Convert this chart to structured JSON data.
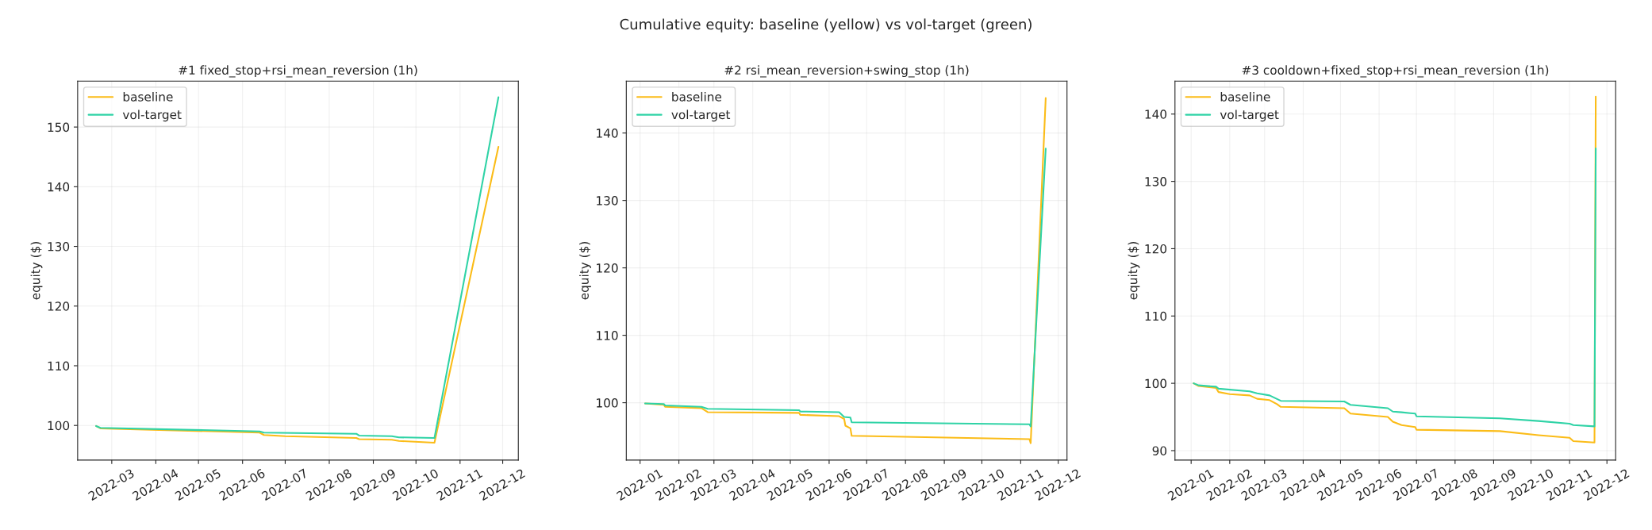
{
  "chart_data": [
    {
      "type": "line",
      "title": "#1 fixed_stop+rsi_mean_reversion (1h)",
      "ylabel": "equity ($)",
      "annotations": [
        "Cumulative equity: baseline (yellow) vs vol-target (green)"
      ],
      "grid": true,
      "legend": "top left",
      "xlim": [
        "2022-02-05",
        "2022-12-12"
      ],
      "ylim": [
        94.2,
        157.7
      ],
      "yticks": [
        100,
        110,
        120,
        130,
        140,
        150
      ],
      "xticks": [
        {
          "value": "2022-03-01",
          "label": "2022-03"
        },
        {
          "value": "2022-04-01",
          "label": "2022-04"
        },
        {
          "value": "2022-05-01",
          "label": "2022-05"
        },
        {
          "value": "2022-06-01",
          "label": "2022-06"
        },
        {
          "value": "2022-07-01",
          "label": "2022-07"
        },
        {
          "value": "2022-08-01",
          "label": "2022-08"
        },
        {
          "value": "2022-09-01",
          "label": "2022-09"
        },
        {
          "value": "2022-10-01",
          "label": "2022-10"
        },
        {
          "value": "2022-11-01",
          "label": "2022-11"
        },
        {
          "value": "2022-12-01",
          "label": "2022-12"
        }
      ],
      "series": [
        {
          "name": "baseline",
          "color": "#fbbc18",
          "x": [
            "2022-02-18",
            "2022-02-21",
            "2022-06-13",
            "2022-06-16",
            "2022-07-01",
            "2022-08-20",
            "2022-08-22",
            "2022-09-14",
            "2022-09-19",
            "2022-10-14",
            "2022-11-28"
          ],
          "values": [
            99.9,
            99.5,
            98.8,
            98.4,
            98.2,
            97.9,
            97.7,
            97.6,
            97.4,
            97.1,
            146.7
          ]
        },
        {
          "name": "vol-target",
          "color": "#2fd3a6",
          "x": [
            "2022-02-18",
            "2022-02-21",
            "2022-06-13",
            "2022-06-16",
            "2022-08-20",
            "2022-08-22",
            "2022-09-14",
            "2022-09-19",
            "2022-10-14",
            "2022-11-28"
          ],
          "values": [
            99.9,
            99.6,
            99.0,
            98.8,
            98.6,
            98.3,
            98.2,
            98.0,
            97.9,
            155.0
          ]
        }
      ]
    },
    {
      "type": "line",
      "title": "#2 rsi_mean_reversion+swing_stop (1h)",
      "ylabel": "equity ($)",
      "grid": true,
      "legend": "top left",
      "xlim": [
        "2021-12-21",
        "2022-12-08"
      ],
      "ylim": [
        91.5,
        147.7
      ],
      "yticks": [
        100,
        110,
        120,
        130,
        140
      ],
      "xticks": [
        {
          "value": "2022-01-01",
          "label": "2022-01"
        },
        {
          "value": "2022-02-01",
          "label": "2022-02"
        },
        {
          "value": "2022-03-01",
          "label": "2022-03"
        },
        {
          "value": "2022-04-01",
          "label": "2022-04"
        },
        {
          "value": "2022-05-01",
          "label": "2022-05"
        },
        {
          "value": "2022-06-01",
          "label": "2022-06"
        },
        {
          "value": "2022-07-01",
          "label": "2022-07"
        },
        {
          "value": "2022-08-01",
          "label": "2022-08"
        },
        {
          "value": "2022-09-01",
          "label": "2022-09"
        },
        {
          "value": "2022-10-01",
          "label": "2022-10"
        },
        {
          "value": "2022-11-01",
          "label": "2022-11"
        },
        {
          "value": "2022-12-01",
          "label": "2022-12"
        }
      ],
      "series": [
        {
          "name": "baseline",
          "color": "#fbbc18",
          "x": [
            "2022-01-05",
            "2022-01-20",
            "2022-01-21",
            "2022-02-19",
            "2022-02-24",
            "2022-05-08",
            "2022-05-09",
            "2022-06-09",
            "2022-06-13",
            "2022-06-14",
            "2022-06-18",
            "2022-06-19",
            "2022-11-08",
            "2022-11-09",
            "2022-11-21"
          ],
          "values": [
            99.9,
            99.7,
            99.4,
            99.2,
            98.6,
            98.5,
            98.2,
            98.0,
            97.6,
            96.6,
            96.2,
            95.1,
            94.6,
            94.0,
            145.2
          ]
        },
        {
          "name": "vol-target",
          "color": "#2fd3a6",
          "x": [
            "2022-01-05",
            "2022-01-20",
            "2022-01-21",
            "2022-02-19",
            "2022-02-24",
            "2022-05-08",
            "2022-05-09",
            "2022-06-09",
            "2022-06-13",
            "2022-06-18",
            "2022-06-19",
            "2022-11-08",
            "2022-11-09",
            "2022-11-21"
          ],
          "values": [
            99.9,
            99.8,
            99.6,
            99.4,
            99.1,
            98.9,
            98.7,
            98.6,
            97.9,
            97.8,
            97.1,
            96.8,
            96.5,
            137.7
          ]
        }
      ]
    },
    {
      "type": "line",
      "title": "#3 cooldown+fixed_stop+rsi_mean_reversion (1h)",
      "ylabel": "equity ($)",
      "grid": true,
      "legend": "top left",
      "xlim": [
        "2021-12-19",
        "2022-12-08"
      ],
      "ylim": [
        88.6,
        144.9
      ],
      "yticks": [
        90,
        100,
        110,
        120,
        130,
        140
      ],
      "xticks": [
        {
          "value": "2022-01-01",
          "label": "2022-01"
        },
        {
          "value": "2022-02-01",
          "label": "2022-02"
        },
        {
          "value": "2022-03-01",
          "label": "2022-03"
        },
        {
          "value": "2022-04-01",
          "label": "2022-04"
        },
        {
          "value": "2022-05-01",
          "label": "2022-05"
        },
        {
          "value": "2022-06-01",
          "label": "2022-06"
        },
        {
          "value": "2022-07-01",
          "label": "2022-07"
        },
        {
          "value": "2022-08-01",
          "label": "2022-08"
        },
        {
          "value": "2022-09-01",
          "label": "2022-09"
        },
        {
          "value": "2022-10-01",
          "label": "2022-10"
        },
        {
          "value": "2022-11-01",
          "label": "2022-11"
        },
        {
          "value": "2022-12-01",
          "label": "2022-12"
        }
      ],
      "series": [
        {
          "name": "baseline",
          "color": "#fbbc18",
          "x": [
            "2022-01-03",
            "2022-01-07",
            "2022-01-21",
            "2022-01-23",
            "2022-02-01",
            "2022-02-17",
            "2022-02-23",
            "2022-03-05",
            "2022-03-11",
            "2022-03-14",
            "2022-05-04",
            "2022-05-09",
            "2022-06-08",
            "2022-06-12",
            "2022-06-19",
            "2022-06-30",
            "2022-07-01",
            "2022-09-06",
            "2022-10-07",
            "2022-11-01",
            "2022-11-04",
            "2022-11-21",
            "2022-11-22"
          ],
          "values": [
            100.0,
            99.6,
            99.3,
            98.7,
            98.4,
            98.2,
            97.7,
            97.5,
            96.9,
            96.5,
            96.3,
            95.5,
            95.0,
            94.3,
            93.8,
            93.5,
            93.1,
            92.9,
            92.3,
            91.9,
            91.4,
            91.2,
            142.6
          ]
        },
        {
          "name": "vol-target",
          "color": "#2fd3a6",
          "x": [
            "2022-01-03",
            "2022-01-07",
            "2022-01-21",
            "2022-01-23",
            "2022-02-17",
            "2022-02-23",
            "2022-03-05",
            "2022-03-14",
            "2022-05-04",
            "2022-05-09",
            "2022-06-08",
            "2022-06-12",
            "2022-06-19",
            "2022-06-30",
            "2022-07-01",
            "2022-09-06",
            "2022-10-07",
            "2022-11-01",
            "2022-11-04",
            "2022-11-21",
            "2022-11-22"
          ],
          "values": [
            100.0,
            99.7,
            99.5,
            99.2,
            98.8,
            98.5,
            98.2,
            97.4,
            97.3,
            96.8,
            96.3,
            95.8,
            95.7,
            95.5,
            95.1,
            94.8,
            94.4,
            94.0,
            93.8,
            93.6,
            134.9
          ]
        }
      ]
    }
  ]
}
